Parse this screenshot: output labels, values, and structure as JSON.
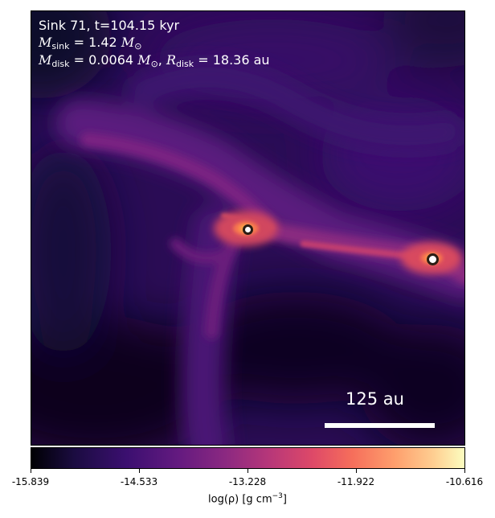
{
  "header": {
    "sink_line": "Sink 71, t=104.15 kyr",
    "msink_symbol": "M",
    "msink_sub": "sink",
    "msink_value": " = 1.42 ",
    "msun_symbol": "M",
    "msun_sub": "⊙",
    "mdisk_symbol": "M",
    "mdisk_sub": "disk",
    "mdisk_value": " = 0.0064 ",
    "mdisk_msun_symbol": "M",
    "mdisk_msun_sub": "⊙",
    "rdisk_sep": ", ",
    "rdisk_symbol": "R",
    "rdisk_sub": "disk",
    "rdisk_value": " = 18.36 au"
  },
  "scalebar": {
    "label": "125 au"
  },
  "sinks": [
    {
      "name": "sink-71"
    },
    {
      "name": "sink-companion"
    }
  ],
  "colorbar": {
    "colormap": "inferno",
    "ticks": [
      "-15.839",
      "-14.533",
      "-13.228",
      "-11.922",
      "-10.616"
    ],
    "label_prefix": "log(ρ) [g cm",
    "label_exp": "−3",
    "label_suffix": "]"
  }
}
